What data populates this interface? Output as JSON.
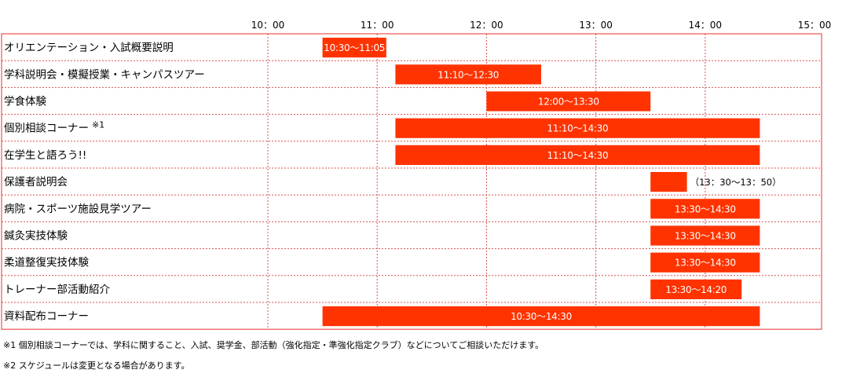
{
  "chart_data": {
    "type": "bar",
    "subtype": "gantt",
    "x_ticks": [
      "10：00",
      "11：00",
      "12：00",
      "13：00",
      "14：00",
      "15：00"
    ],
    "xlim": [
      "10:00",
      "15:00"
    ],
    "grid": true,
    "bar_color": "#ff3300",
    "border_color": "#e8312f",
    "grid_color": "#d9534f",
    "rows": [
      {
        "label": "オリエンテーション・入試概要説明",
        "start": "10:30",
        "end": "11:05",
        "bar_label": "10:30～11:05",
        "label_inside": true
      },
      {
        "label": "学科説明会・模擬授業・キャンパスツアー",
        "start": "11:10",
        "end": "12:30",
        "bar_label": "11:10～12:30",
        "label_inside": true
      },
      {
        "label": "学食体験",
        "start": "12:00",
        "end": "13:30",
        "bar_label": "12:00～13:30",
        "label_inside": true
      },
      {
        "label": "個別相談コーナー",
        "label_sup": "※1",
        "start": "11:10",
        "end": "14:30",
        "bar_label": "11:10～14:30",
        "label_inside": true
      },
      {
        "label": "在学生と語ろう!!",
        "start": "11:10",
        "end": "14:30",
        "bar_label": "11:10～14:30",
        "label_inside": true
      },
      {
        "label": "保護者説明会",
        "start": "13:30",
        "end": "13:50",
        "bar_label": "（13：30～13：50）",
        "label_inside": false
      },
      {
        "label": "病院・スポーツ施設見学ツアー",
        "start": "13:30",
        "end": "14:30",
        "bar_label": "13:30～14:30",
        "label_inside": true
      },
      {
        "label": "鍼灸実技体験",
        "start": "13:30",
        "end": "14:30",
        "bar_label": "13:30～14:30",
        "label_inside": true
      },
      {
        "label": "柔道整復実技体験",
        "start": "13:30",
        "end": "14:30",
        "bar_label": "13:30～14:30",
        "label_inside": true
      },
      {
        "label": "トレーナー部活動紹介",
        "start": "13:30",
        "end": "14:20",
        "bar_label": "13:30～14:20",
        "label_inside": true
      },
      {
        "label": "資料配布コーナー",
        "start": "10:30",
        "end": "14:30",
        "bar_label": "10:30～14:30",
        "label_inside": true
      }
    ]
  },
  "notes": {
    "note1": "※1 個別相談コーナーでは、学科に関すること、入試、奨学金、部活動（強化指定・準強化指定クラブ）などについてご相談いただけます。",
    "note2": "※2 スケジュールは変更となる場合があります。"
  }
}
